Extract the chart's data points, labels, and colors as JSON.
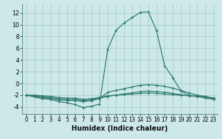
{
  "xlabel": "Humidex (Indice chaleur)",
  "background_color": "#cce8e8",
  "grid_color": "#aacccc",
  "line_color": "#2d7a6e",
  "xlim": [
    -0.5,
    23.5
  ],
  "ylim": [
    -5.2,
    13.5
  ],
  "yticks": [
    -4,
    -2,
    0,
    2,
    4,
    6,
    8,
    10,
    12
  ],
  "xticks": [
    0,
    1,
    2,
    3,
    4,
    5,
    6,
    7,
    8,
    9,
    10,
    11,
    12,
    13,
    14,
    15,
    16,
    17,
    18,
    19,
    20,
    21,
    22,
    23
  ],
  "curves": [
    {
      "x": [
        0,
        1,
        2,
        3,
        4,
        5,
        6,
        7,
        8,
        9,
        10,
        11,
        12,
        13,
        14,
        15,
        16,
        17,
        18,
        19,
        20,
        21,
        22,
        23
      ],
      "y": [
        -2.0,
        -2.3,
        -2.6,
        -2.7,
        -3.1,
        -3.3,
        -3.6,
        -4.1,
        -3.9,
        -3.5,
        5.8,
        9.0,
        10.3,
        11.2,
        12.1,
        12.2,
        9.0,
        3.0,
        1.0,
        -1.3,
        -2.0,
        -2.2,
        -2.5,
        -2.7
      ]
    },
    {
      "x": [
        0,
        1,
        2,
        3,
        4,
        5,
        6,
        7,
        8,
        9,
        10,
        11,
        12,
        13,
        14,
        15,
        16,
        17,
        18,
        19,
        20,
        21,
        22,
        23
      ],
      "y": [
        -2.0,
        -2.2,
        -2.4,
        -2.6,
        -2.8,
        -2.9,
        -2.9,
        -3.1,
        -2.9,
        -2.6,
        -1.5,
        -1.2,
        -0.9,
        -0.6,
        -0.3,
        -0.2,
        -0.3,
        -0.5,
        -0.8,
        -1.2,
        -1.6,
        -2.0,
        -2.2,
        -2.5
      ]
    },
    {
      "x": [
        0,
        1,
        2,
        3,
        4,
        5,
        6,
        7,
        8,
        9,
        10,
        11,
        12,
        13,
        14,
        15,
        16,
        17,
        18,
        19,
        20,
        21,
        22,
        23
      ],
      "y": [
        -2.0,
        -2.1,
        -2.3,
        -2.4,
        -2.6,
        -2.7,
        -2.7,
        -2.9,
        -2.8,
        -2.5,
        -2.2,
        -2.0,
        -1.8,
        -1.6,
        -1.4,
        -1.3,
        -1.4,
        -1.5,
        -1.7,
        -1.9,
        -2.1,
        -2.2,
        -2.3,
        -2.6
      ]
    },
    {
      "x": [
        0,
        1,
        2,
        3,
        4,
        5,
        6,
        7,
        8,
        9,
        10,
        11,
        12,
        13,
        14,
        15,
        16,
        17,
        18,
        19,
        20,
        21,
        22,
        23
      ],
      "y": [
        -2.0,
        -2.0,
        -2.1,
        -2.2,
        -2.4,
        -2.5,
        -2.5,
        -2.7,
        -2.6,
        -2.4,
        -2.1,
        -2.0,
        -1.9,
        -1.8,
        -1.7,
        -1.6,
        -1.7,
        -1.8,
        -1.9,
        -2.0,
        -2.1,
        -2.2,
        -2.3,
        -2.5
      ]
    }
  ]
}
